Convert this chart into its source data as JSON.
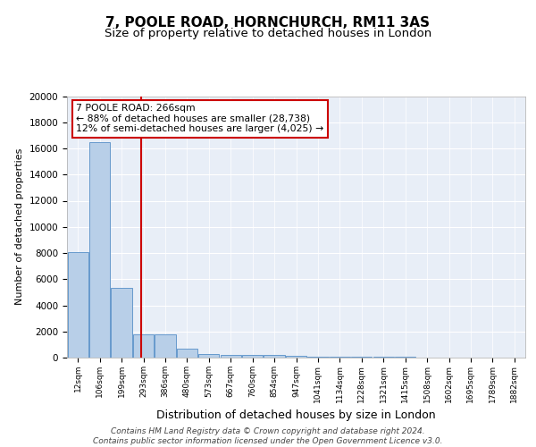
{
  "title": "7, POOLE ROAD, HORNCHURCH, RM11 3AS",
  "subtitle": "Size of property relative to detached houses in London",
  "xlabel": "Distribution of detached houses by size in London",
  "ylabel": "Number of detached properties",
  "categories": [
    "12sqm",
    "106sqm",
    "199sqm",
    "293sqm",
    "386sqm",
    "480sqm",
    "573sqm",
    "667sqm",
    "760sqm",
    "854sqm",
    "947sqm",
    "1041sqm",
    "1134sqm",
    "1228sqm",
    "1321sqm",
    "1415sqm",
    "1508sqm",
    "1602sqm",
    "1695sqm",
    "1789sqm",
    "1882sqm"
  ],
  "values": [
    8100,
    16500,
    5300,
    1750,
    1750,
    700,
    300,
    210,
    175,
    175,
    150,
    100,
    80,
    60,
    50,
    40,
    30,
    20,
    10,
    5,
    2
  ],
  "bar_color": "#b8cfe8",
  "bar_edge_color": "#6699cc",
  "vline_x": 2.88,
  "vline_color": "#cc0000",
  "annotation_text": "7 POOLE ROAD: 266sqm\n← 88% of detached houses are smaller (28,738)\n12% of semi-detached houses are larger (4,025) →",
  "annotation_box_color": "#ffffff",
  "annotation_box_edge": "#cc0000",
  "ylim": [
    0,
    20000
  ],
  "yticks": [
    0,
    2000,
    4000,
    6000,
    8000,
    10000,
    12000,
    14000,
    16000,
    18000,
    20000
  ],
  "background_color": "#e8eef7",
  "footer": "Contains HM Land Registry data © Crown copyright and database right 2024.\nContains public sector information licensed under the Open Government Licence v3.0.",
  "title_fontsize": 11,
  "subtitle_fontsize": 9.5,
  "ylabel_fontsize": 8,
  "xlabel_fontsize": 9,
  "tick_fontsize": 7.5,
  "xtick_fontsize": 6.5,
  "annot_fontsize": 7.8,
  "footer_fontsize": 6.5
}
